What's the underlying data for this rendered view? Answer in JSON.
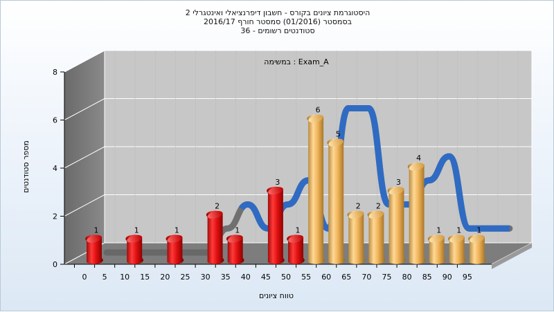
{
  "titles": {
    "line1": "היסטוגרמת ציונים בקורס - חשבון דיפרנציאלי ואינטגרלי 2",
    "line2": "בסמסטר  (01/2016)  סמסטר חורף 2016/17",
    "line3": "סטודנטים רשומים - 36"
  },
  "chart_data": {
    "type": "bar",
    "title": "Exam_A : במשימה",
    "xlabel": "טווח ציונים",
    "ylabel": "מספר סטודנטים",
    "x_ticks": [
      "0",
      "5",
      "10",
      "15",
      "20",
      "25",
      "30",
      "35",
      "40",
      "45",
      "50",
      "55",
      "60",
      "65",
      "70",
      "75",
      "80",
      "85",
      "90",
      "95"
    ],
    "y_ticks": [
      "0",
      "2",
      "4",
      "6",
      "8"
    ],
    "ylim": [
      0,
      8
    ],
    "bars": [
      {
        "x": 0,
        "value": 1,
        "label": "1",
        "color": "red"
      },
      {
        "x": 10,
        "value": 1,
        "label": "1",
        "color": "red"
      },
      {
        "x": 20,
        "value": 1,
        "label": "1",
        "color": "red"
      },
      {
        "x": 30,
        "value": 2,
        "label": "2",
        "color": "red"
      },
      {
        "x": 35,
        "value": 1,
        "label": "1",
        "color": "red"
      },
      {
        "x": 45,
        "value": 3,
        "label": "3",
        "color": "red"
      },
      {
        "x": 50,
        "value": 1,
        "label": "1",
        "color": "red"
      },
      {
        "x": 55,
        "value": 6,
        "label": "6",
        "color": "gold"
      },
      {
        "x": 60,
        "value": 5,
        "label": "5",
        "color": "gold"
      },
      {
        "x": 65,
        "value": 2,
        "label": "2",
        "color": "gold"
      },
      {
        "x": 70,
        "value": 2,
        "label": "2",
        "color": "gold"
      },
      {
        "x": 75,
        "value": 3,
        "label": "3",
        "color": "gold"
      },
      {
        "x": 80,
        "value": 4,
        "label": "4",
        "color": "gold"
      },
      {
        "x": 85,
        "value": 1,
        "label": "1",
        "color": "gold"
      },
      {
        "x": 90,
        "value": 1,
        "label": "1",
        "color": "gold"
      },
      {
        "x": 95,
        "value": 1,
        "label": "1",
        "color": "gold"
      }
    ],
    "curve": [
      [
        0,
        0
      ],
      [
        5,
        0
      ],
      [
        10,
        0
      ],
      [
        15,
        0
      ],
      [
        20,
        0
      ],
      [
        25,
        0
      ],
      [
        30,
        1
      ],
      [
        35,
        2
      ],
      [
        40,
        1
      ],
      [
        45,
        2
      ],
      [
        50,
        3
      ],
      [
        55,
        1
      ],
      [
        60,
        6
      ],
      [
        65,
        6
      ],
      [
        70,
        2
      ],
      [
        75,
        2
      ],
      [
        80,
        3
      ],
      [
        85,
        4
      ],
      [
        90,
        1
      ],
      [
        95,
        1
      ],
      [
        100,
        1
      ]
    ],
    "curve_color": "#2f6bc2",
    "curve_shadow_color": "#666666",
    "grid": true
  }
}
